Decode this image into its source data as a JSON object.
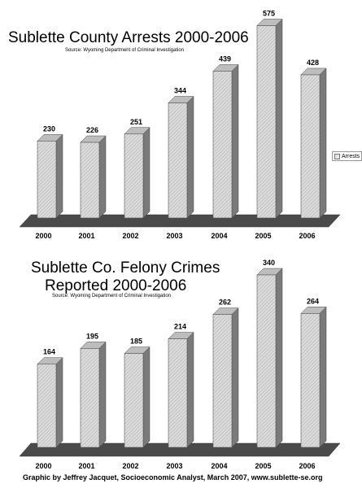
{
  "chart_data": [
    {
      "type": "bar",
      "title": "Sublette County Arrests 2000-2006",
      "subtitle": "Source: Wyoming Department of Criminal Investigation",
      "categories": [
        "2000",
        "2001",
        "2002",
        "2003",
        "2004",
        "2005",
        "2006"
      ],
      "series": [
        {
          "name": "Arrests",
          "values": [
            230,
            226,
            251,
            344,
            439,
            575,
            428
          ]
        }
      ],
      "xlabel": "",
      "ylabel": "",
      "ylim": [
        0,
        600
      ],
      "grid": false,
      "legend": "right",
      "style": "3d"
    },
    {
      "type": "bar",
      "title_lines": [
        "Sublette Co. Felony Crimes",
        "Reported 2000-2006"
      ],
      "subtitle": "Source: Wyoming Department of Criminal Investigation",
      "categories": [
        "2000",
        "2001",
        "2002",
        "2003",
        "2004",
        "2005",
        "2006"
      ],
      "series": [
        {
          "values": [
            164,
            195,
            185,
            214,
            262,
            340,
            264
          ]
        }
      ],
      "xlabel": "",
      "ylabel": "",
      "ylim": [
        0,
        360
      ],
      "grid": false,
      "style": "3d"
    }
  ],
  "credit": "Graphic by Jeffrey Jacquet, Socioeconomic Analyst, March 2007, www.sublette-se.org",
  "colors": {
    "bar_face": "#dcdcdc",
    "bar_side": "#7a7a7a",
    "floor": "#4a4a4a"
  }
}
